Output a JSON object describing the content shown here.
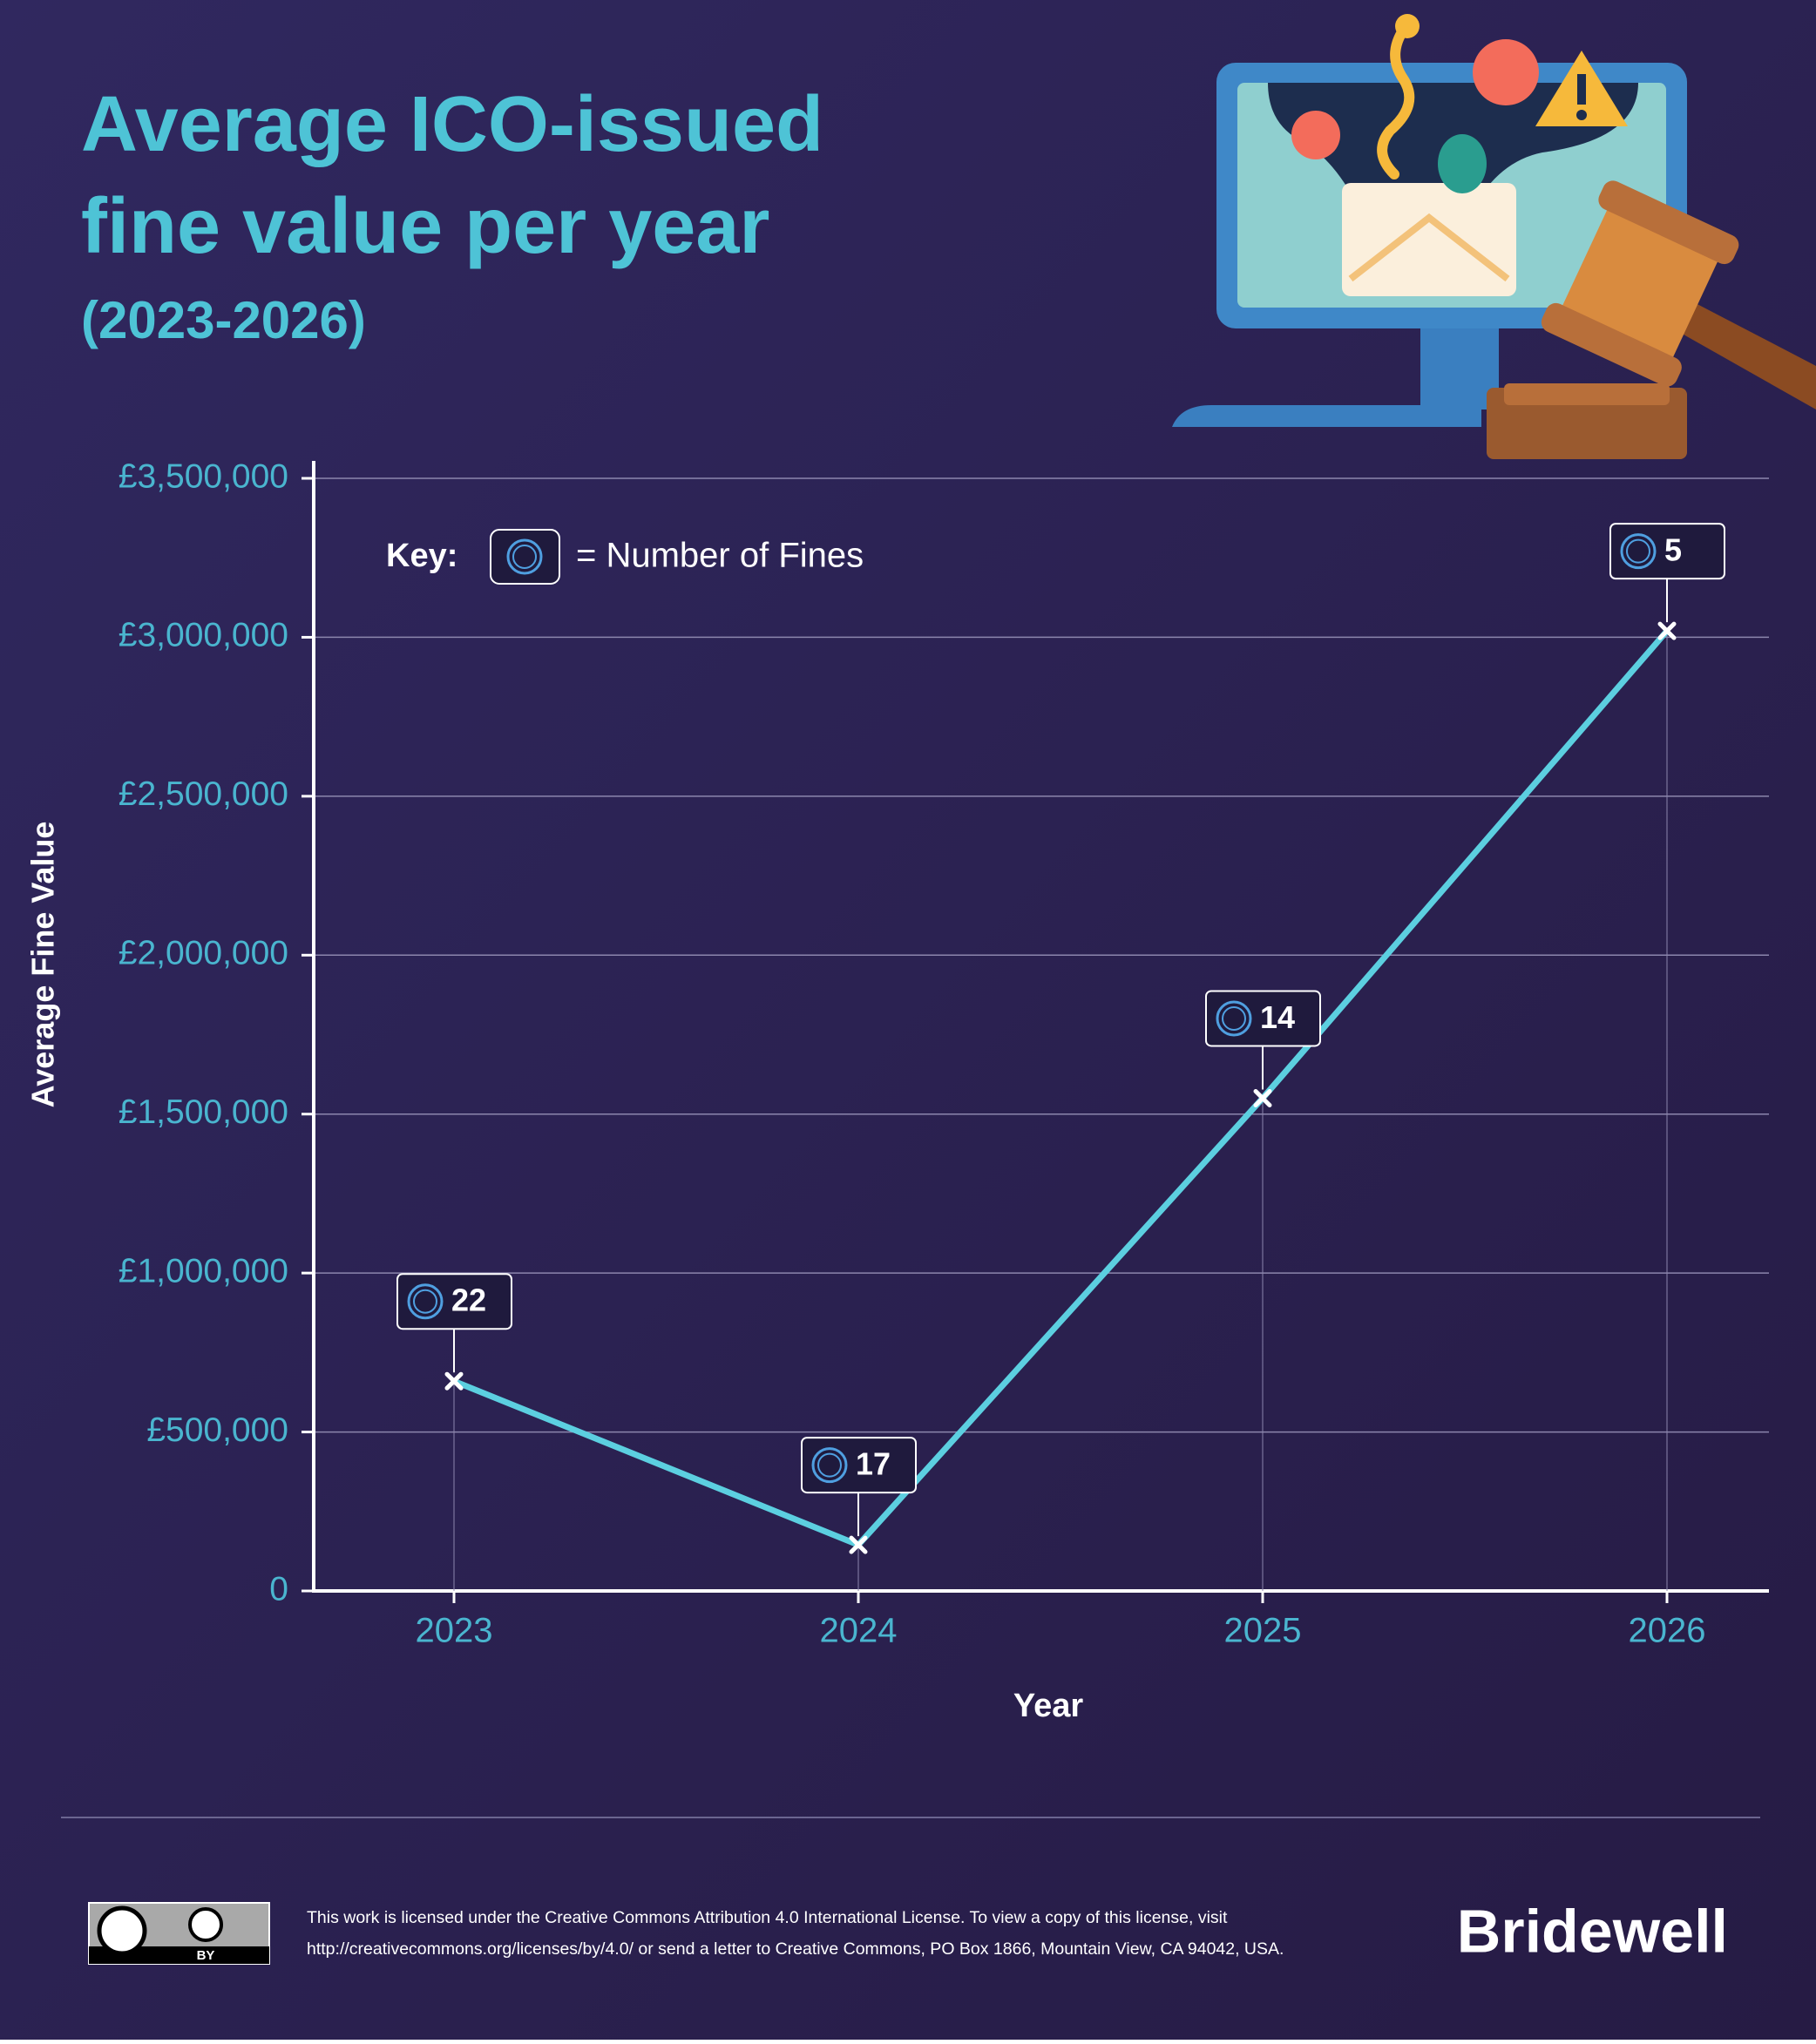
{
  "chart_data": {
    "type": "line",
    "title_lines": [
      "Average ICO-issued",
      "fine value per year"
    ],
    "subtitle": "(2023-2026)",
    "ylabel": "Average Fine Value",
    "xlabel": "Year",
    "categories": [
      "2023",
      "2024",
      "2025",
      "2026"
    ],
    "values": [
      660000,
      145000,
      1550000,
      3020000
    ],
    "color": "#5ccfe0",
    "fine_counts": [
      22,
      17,
      14,
      5
    ],
    "key_label": "Key:",
    "key_text": "= Number of Fines",
    "ylim": [
      0,
      3500000
    ],
    "yticks": [
      0,
      {
        "value": 500000,
        "label": "£500,000"
      },
      {
        "value": 1000000,
        "label": "£1,000,000"
      },
      {
        "value": 1500000,
        "label": "£1,500,000"
      },
      {
        "value": 2000000,
        "label": "£2,000,000"
      },
      {
        "value": 2500000,
        "label": "£2,500,000"
      },
      {
        "value": 3000000,
        "label": "£3,000,000"
      },
      {
        "value": 3500000,
        "label": "£3,500,000"
      }
    ],
    "grid": true
  },
  "footer": {
    "license_lines": [
      "This work is licensed under the Creative Commons Attribution 4.0 International License. To view a copy of this license, visit",
      "http://creativecommons.org/licenses/by/4.0/ or send a letter to Creative Commons, PO Box 1866, Mountain View, CA 94042, USA."
    ],
    "badge_text": "BY",
    "brand": "Bridewell"
  }
}
